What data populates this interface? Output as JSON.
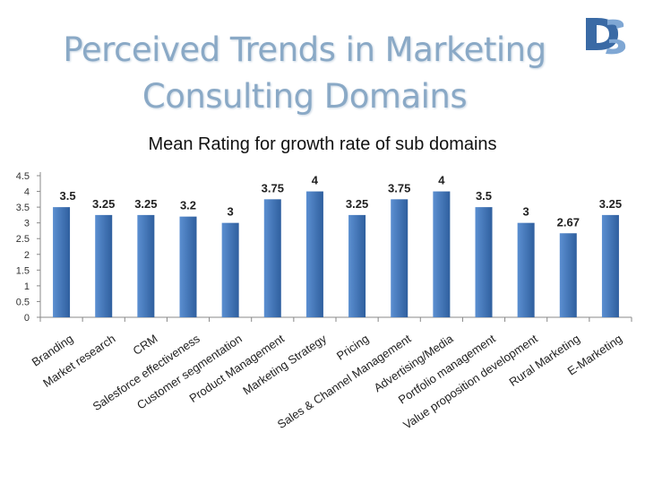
{
  "slide": {
    "title_line1": "Perceived Trends in Marketing",
    "title_line2": "Consulting Domains"
  },
  "colors": {
    "bar_top": "#5b8fd1",
    "bar_bottom": "#2f5f9e",
    "title": "#8aa9c6"
  },
  "chart_data": {
    "type": "bar",
    "title": "Mean Rating for growth rate of sub domains",
    "categories": [
      "Branding",
      "Market research",
      "CRM",
      "Salesforce effectiveness",
      "Customer segmentation",
      "Product Management",
      "Marketing Strategy",
      "Pricing",
      "Sales & Channel Management",
      "Advertising/Media",
      "Portfolio management",
      "Value proposition development",
      "Rural Marketing",
      "E-Marketing"
    ],
    "values": [
      3.5,
      3.25,
      3.25,
      3.2,
      3,
      3.75,
      4,
      3.25,
      3.75,
      4,
      3.5,
      3,
      2.67,
      3.25
    ],
    "value_labels": [
      "3.5",
      "3.25",
      "3.25",
      "3.2",
      "3",
      "3.75",
      "4",
      "3.25",
      "3.75",
      "4",
      "3.5",
      "3",
      "2.67",
      "3.25"
    ],
    "y_ticks": [
      "0",
      "0.5",
      "1",
      "1.5",
      "2",
      "2.5",
      "3",
      "3.5",
      "4",
      "4.5"
    ],
    "ylim": [
      0,
      4.5
    ],
    "grid": false,
    "legend": "none"
  }
}
